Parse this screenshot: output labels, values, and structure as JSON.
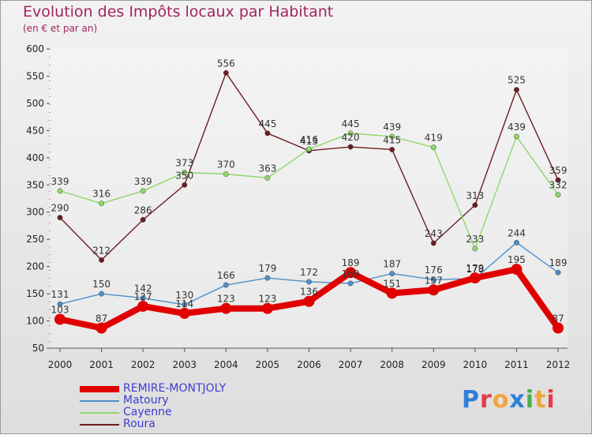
{
  "title": "Evolution des Impôts locaux par Habitant",
  "subtitle": "(en € et par an)",
  "logo_text": "Proxiti",
  "colors": {
    "title": "#a0255e",
    "grid_dash": "#e0103a",
    "axis": "#555555",
    "tick_label": "#222222"
  },
  "chart_data": {
    "type": "line",
    "title": "Evolution des Impôts locaux par Habitant",
    "subtitle": "(en € et par an)",
    "xlabel": "",
    "ylabel": "",
    "categories": [
      "2000",
      "2001",
      "2002",
      "2003",
      "2004",
      "2005",
      "2006",
      "2007",
      "2008",
      "2009",
      "2010",
      "2011",
      "2012"
    ],
    "ylim": [
      50,
      600
    ],
    "yticks": [
      50,
      100,
      150,
      200,
      250,
      300,
      350,
      400,
      450,
      500,
      550,
      600
    ],
    "series": [
      {
        "name": "REMIRE-MONTJOLY",
        "color": "#e00000",
        "values": [
          103,
          87,
          127,
          114,
          123,
          123,
          136,
          189,
          151,
          157,
          179,
          195,
          87
        ],
        "labels": [
          "103",
          "87",
          "127",
          "114",
          "123",
          "123",
          "136",
          "189",
          "151",
          "157",
          "179",
          "195",
          "87"
        ],
        "width": "thick"
      },
      {
        "name": "Matoury",
        "color": "#4f8fc8",
        "values": [
          131,
          150,
          142,
          130,
          166,
          179,
          172,
          169,
          187,
          176,
          178,
          244,
          189
        ],
        "labels": [
          "131",
          "150",
          "142",
          "130",
          "166",
          "179",
          "172",
          "169",
          "187",
          "176",
          "178",
          "244",
          "189"
        ],
        "width": "thin"
      },
      {
        "name": "Cayenne",
        "color": "#8fd86a",
        "values": [
          339,
          316,
          339,
          373,
          370,
          363,
          416,
          445,
          439,
          419,
          233,
          439,
          332
        ],
        "labels": [
          "339",
          "316",
          "339",
          "373",
          "370",
          "363",
          "416",
          "445",
          "439",
          "419",
          "233",
          "439",
          "332"
        ],
        "width": "thin"
      },
      {
        "name": "Roura",
        "color": "#6e1d22",
        "values": [
          290,
          212,
          286,
          350,
          556,
          445,
          413,
          420,
          415,
          243,
          313,
          525,
          359
        ],
        "labels": [
          "290",
          "212",
          "286",
          "350",
          "556",
          "445",
          "413",
          "420",
          "415",
          "243",
          "313",
          "525",
          "359"
        ],
        "width": "thin"
      }
    ],
    "legend_position": "bottom-left"
  }
}
